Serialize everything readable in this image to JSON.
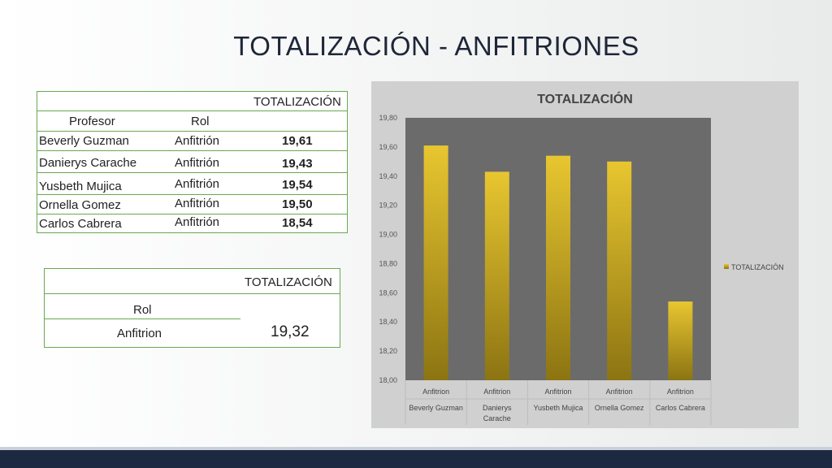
{
  "slide": {
    "title": "TOTALIZACIÓN - ANFITRIONES"
  },
  "table1": {
    "header_top": "TOTALIZACIÓN",
    "col_profesor": "Profesor",
    "col_rol": "Rol",
    "rows": [
      {
        "name": "Beverly Guzman",
        "role": "Anfitrión",
        "value": "19,61"
      },
      {
        "name": "Danierys Carache",
        "role": "Anfitrión",
        "value": "19,43"
      },
      {
        "name": "Yusbeth Mujica",
        "role": "Anfitrión",
        "value": "19,54"
      },
      {
        "name": "Ornella Gomez",
        "role": "Anfitrión",
        "value": "19,50"
      },
      {
        "name": "Carlos Cabrera",
        "role": "Anfitrión",
        "value": "18,54"
      }
    ]
  },
  "table2": {
    "header": "TOTALIZACIÓN",
    "rol_label": "Rol",
    "rol_value": "Anfitrion",
    "total": "19,32"
  },
  "chart_data": {
    "type": "bar",
    "title": "TOTALIZACIÓN",
    "categories": [
      [
        "Anfitrion",
        "Beverly Guzman"
      ],
      [
        "Anfitrion",
        "Danierys Carache"
      ],
      [
        "Anfitrion",
        "Yusbeth Mujica"
      ],
      [
        "Anfitrion",
        "Ornella Gomez"
      ],
      [
        "Anfitrion",
        "Carlos Cabrera"
      ]
    ],
    "category_label_lines": [
      [
        "Anfitrion",
        "Beverly Guzman"
      ],
      [
        "Anfitrion",
        "Danierys",
        "Carache"
      ],
      [
        "Anfitrion",
        "Yusbeth Mujica"
      ],
      [
        "Anfitrion",
        "Ornella Gomez"
      ],
      [
        "Anfitrion",
        "Carlos Cabrera"
      ]
    ],
    "series": [
      {
        "name": "TOTALIZACIÓN",
        "values": [
          19.61,
          19.43,
          19.54,
          19.5,
          18.54
        ]
      }
    ],
    "yticks": [
      "18,00",
      "18,20",
      "18,40",
      "18,60",
      "18,80",
      "19,00",
      "19,20",
      "19,40",
      "19,60",
      "19,80"
    ],
    "ylim": [
      18.0,
      19.8
    ],
    "legend_position": "right",
    "grid": false,
    "colors": {
      "plot_bg": "#6b6b6b",
      "bar_top": "#e8c630",
      "bar_bottom": "#8c7412",
      "panel_bg": "#d0d0d0"
    }
  }
}
